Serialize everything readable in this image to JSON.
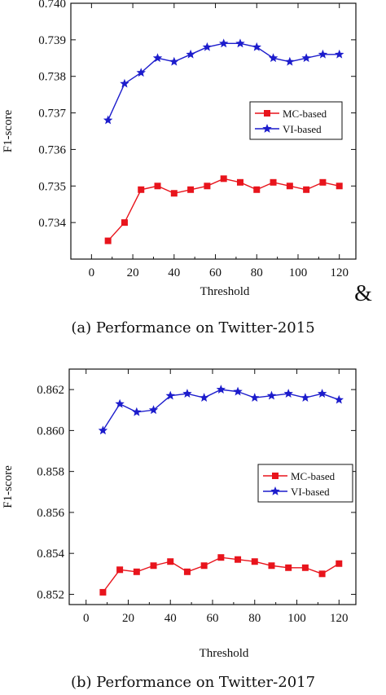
{
  "colors": {
    "mc": "#e8141c",
    "vi": "#1c1ccc",
    "axis": "#111111"
  },
  "ampersand": "&",
  "chart_data": [
    {
      "type": "line",
      "xlabel": "Threshold",
      "ylabel": "F1-score",
      "caption": "(a)  Performance on Twitter-2015",
      "xlim": [
        -10,
        128
      ],
      "ylim": [
        0.733,
        0.74
      ],
      "xticks": [
        0,
        20,
        40,
        60,
        80,
        100,
        120
      ],
      "xtick_labels": [
        "0",
        "20",
        "40",
        "60",
        "80",
        "100",
        "120"
      ],
      "yticks": [
        0.734,
        0.735,
        0.736,
        0.737,
        0.738,
        0.739,
        0.74
      ],
      "ytick_labels": [
        "0.734",
        "0.735",
        "0.736",
        "0.737",
        "0.738",
        "0.739",
        "0.740"
      ],
      "grid": false,
      "legend_position": "right-middle",
      "x": [
        8,
        16,
        24,
        32,
        40,
        48,
        56,
        64,
        72,
        80,
        88,
        96,
        104,
        112,
        120
      ],
      "series": [
        {
          "name": "MC-based",
          "marker": "square",
          "values": [
            0.7335,
            0.734,
            0.7349,
            0.735,
            0.7348,
            0.7349,
            0.735,
            0.7352,
            0.7351,
            0.7349,
            0.7351,
            0.735,
            0.7349,
            0.7351,
            0.735
          ]
        },
        {
          "name": "VI-based",
          "marker": "star",
          "values": [
            0.7368,
            0.7378,
            0.7381,
            0.7385,
            0.7384,
            0.7386,
            0.7388,
            0.7389,
            0.7389,
            0.7388,
            0.7385,
            0.7384,
            0.7385,
            0.7386,
            0.7386
          ]
        }
      ]
    },
    {
      "type": "line",
      "xlabel": "Threshold",
      "ylabel": "F1-score",
      "caption": "(b)  Performance on Twitter-2017",
      "xlim": [
        -8,
        128
      ],
      "ylim": [
        0.8515,
        0.863
      ],
      "xticks": [
        0,
        20,
        40,
        60,
        80,
        100,
        120
      ],
      "xtick_labels": [
        "0",
        "20",
        "40",
        "60",
        "80",
        "100",
        "120"
      ],
      "yticks": [
        0.852,
        0.854,
        0.856,
        0.858,
        0.86,
        0.862
      ],
      "ytick_labels": [
        "0.852",
        "0.854",
        "0.856",
        "0.858",
        "0.860",
        "0.862"
      ],
      "grid": false,
      "legend_position": "right-middle",
      "x": [
        8,
        16,
        24,
        32,
        40,
        48,
        56,
        64,
        72,
        80,
        88,
        96,
        104,
        112,
        120
      ],
      "series": [
        {
          "name": "MC-based",
          "marker": "square",
          "values": [
            0.8521,
            0.8532,
            0.8531,
            0.8534,
            0.8536,
            0.8531,
            0.8534,
            0.8538,
            0.8537,
            0.8536,
            0.8534,
            0.8533,
            0.8533,
            0.853,
            0.8535
          ]
        },
        {
          "name": "VI-based",
          "marker": "star",
          "values": [
            0.86,
            0.8613,
            0.8609,
            0.861,
            0.8617,
            0.8618,
            0.8616,
            0.862,
            0.8619,
            0.8616,
            0.8617,
            0.8618,
            0.8616,
            0.8618,
            0.8615
          ]
        }
      ]
    }
  ]
}
